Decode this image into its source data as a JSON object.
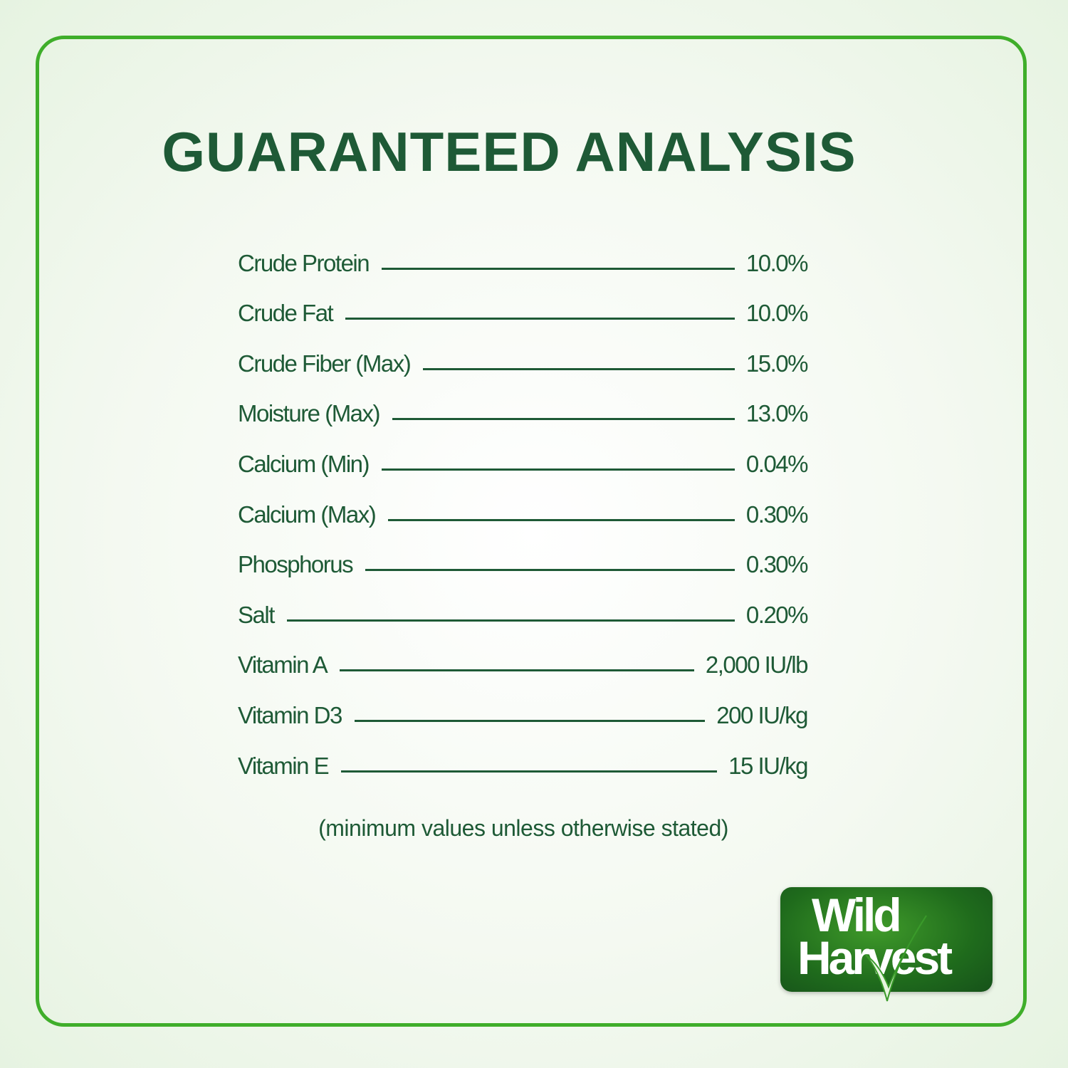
{
  "title": "GUARANTEED ANALYSIS",
  "rows": [
    {
      "label": "Crude Protein",
      "value": "10.0%"
    },
    {
      "label": "Crude Fat",
      "value": "10.0%"
    },
    {
      "label": "Crude Fiber (Max)",
      "value": "15.0%"
    },
    {
      "label": "Moisture (Max)",
      "value": "13.0%"
    },
    {
      "label": "Calcium (Min)",
      "value": "0.04%"
    },
    {
      "label": "Calcium (Max)",
      "value": "0.30%"
    },
    {
      "label": "Phosphorus",
      "value": "0.30%"
    },
    {
      "label": "Salt",
      "value": "0.20%"
    },
    {
      "label": "Vitamin A",
      "value": "2,000 IU/lb"
    },
    {
      "label": "Vitamin D3",
      "value": "200 IU/kg"
    },
    {
      "label": "Vitamin E",
      "value": "15 IU/kg"
    }
  ],
  "note": "(minimum values unless otherwise stated)",
  "logo": {
    "line1": "Wild",
    "line2": "Harvest"
  },
  "colors": {
    "text": "#1e5a36",
    "border": "#3fae2a",
    "logo_bg": "#1f6b1c"
  }
}
